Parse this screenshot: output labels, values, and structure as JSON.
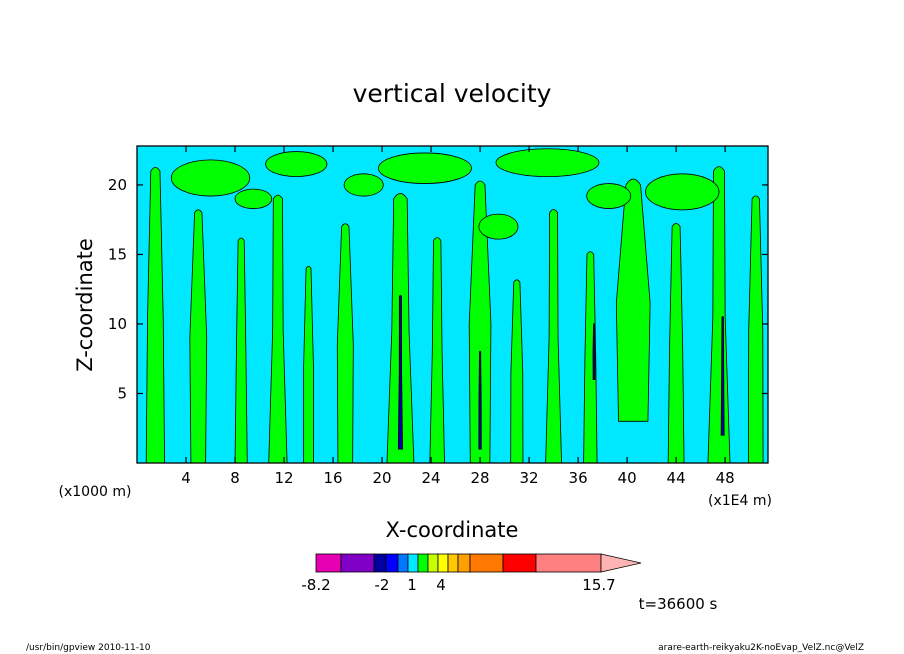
{
  "chart_data": {
    "type": "heatmap",
    "title": "vertical velocity",
    "xlabel": "X-coordinate",
    "ylabel": "Z-coordinate",
    "x_unit_left": "(x1000 m)",
    "x_unit_right": "(x1E4 m)",
    "xlim": [
      0,
      51.5
    ],
    "ylim": [
      0,
      22.8
    ],
    "x_ticks": [
      4,
      8,
      12,
      16,
      20,
      24,
      28,
      32,
      36,
      40,
      44,
      48
    ],
    "y_ticks": [
      5,
      10,
      15,
      20
    ],
    "grid": false,
    "background_color": "#00e8ff",
    "features": [
      {
        "name": "positive-band",
        "color": "#00ff00",
        "x": 1.5,
        "z0": 0,
        "z1": 21,
        "width": 1.5
      },
      {
        "name": "positive-band",
        "color": "#00ff00",
        "x": 5,
        "z0": 0,
        "z1": 18,
        "width": 1.2
      },
      {
        "name": "positive-band",
        "color": "#00ff00",
        "x": 8.5,
        "z0": 0,
        "z1": 16,
        "width": 1.0
      },
      {
        "name": "positive-band",
        "color": "#00ff00",
        "x": 11.5,
        "z0": 0,
        "z1": 19,
        "width": 1.5
      },
      {
        "name": "positive-band",
        "color": "#00ff00",
        "x": 14,
        "z0": 0,
        "z1": 14,
        "width": 0.8
      },
      {
        "name": "positive-band",
        "color": "#00ff00",
        "x": 17,
        "z0": 0,
        "z1": 17,
        "width": 1.2
      },
      {
        "name": "positive-band",
        "color": "#00ff00",
        "x": 21.5,
        "z0": 0,
        "z1": 19,
        "width": 2.2
      },
      {
        "name": "positive-band",
        "color": "#00ff00",
        "x": 24.5,
        "z0": 0,
        "z1": 16,
        "width": 1.2
      },
      {
        "name": "positive-band",
        "color": "#00ff00",
        "x": 28,
        "z0": 0,
        "z1": 20,
        "width": 1.6
      },
      {
        "name": "positive-band",
        "color": "#00ff00",
        "x": 31,
        "z0": 0,
        "z1": 13,
        "width": 1.0
      },
      {
        "name": "positive-band",
        "color": "#00ff00",
        "x": 34,
        "z0": 0,
        "z1": 18,
        "width": 1.3
      },
      {
        "name": "positive-band",
        "color": "#00ff00",
        "x": 37,
        "z0": 0,
        "z1": 15,
        "width": 1.1
      },
      {
        "name": "positive-band",
        "color": "#00ff00",
        "x": 40.5,
        "z0": 3,
        "z1": 20,
        "width": 2.4
      },
      {
        "name": "positive-band",
        "color": "#00ff00",
        "x": 44,
        "z0": 0,
        "z1": 17,
        "width": 1.3
      },
      {
        "name": "positive-band",
        "color": "#00ff00",
        "x": 47.5,
        "z0": 0,
        "z1": 21,
        "width": 1.8
      },
      {
        "name": "positive-band",
        "color": "#00ff00",
        "x": 50.5,
        "z0": 0,
        "z1": 19,
        "width": 1.2
      },
      {
        "name": "upper-patch",
        "color": "#00ff00",
        "x": 6,
        "z": 20.5,
        "rx": 3.2,
        "rz": 1.3
      },
      {
        "name": "upper-patch",
        "color": "#00ff00",
        "x": 13,
        "z": 21.5,
        "rx": 2.5,
        "rz": 0.9
      },
      {
        "name": "upper-patch",
        "color": "#00ff00",
        "x": 23.5,
        "z": 21.2,
        "rx": 3.8,
        "rz": 1.1
      },
      {
        "name": "upper-patch",
        "color": "#00ff00",
        "x": 33.5,
        "z": 21.6,
        "rx": 4.2,
        "rz": 1.0
      },
      {
        "name": "upper-patch",
        "color": "#00ff00",
        "x": 44.5,
        "z": 19.5,
        "rx": 3.0,
        "rz": 1.3
      },
      {
        "name": "upper-patch",
        "color": "#00ff00",
        "x": 18.5,
        "z": 20.0,
        "rx": 1.6,
        "rz": 0.8
      },
      {
        "name": "upper-patch",
        "color": "#00ff00",
        "x": 38.5,
        "z": 19.2,
        "rx": 1.8,
        "rz": 0.9
      },
      {
        "name": "upper-patch",
        "color": "#00ff00",
        "x": 29.5,
        "z": 17.0,
        "rx": 1.6,
        "rz": 0.9
      },
      {
        "name": "upper-patch",
        "color": "#00ff00",
        "x": 9.5,
        "z": 19.0,
        "rx": 1.5,
        "rz": 0.7
      },
      {
        "name": "updraft-core",
        "color": "#0000aa",
        "x": 21.5,
        "z0": 1,
        "z1": 12,
        "width": 0.35
      },
      {
        "name": "updraft-core",
        "color": "#0000aa",
        "x": 28,
        "z0": 1,
        "z1": 8,
        "width": 0.2
      },
      {
        "name": "updraft-core",
        "color": "#0000aa",
        "x": 37.3,
        "z0": 6,
        "z1": 10,
        "width": 0.15
      },
      {
        "name": "updraft-core",
        "color": "#0000aa",
        "x": 47.8,
        "z0": 2,
        "z1": 10.5,
        "width": 0.25
      }
    ]
  },
  "colorbar": {
    "min_label": "-8.2",
    "max_label": "15.7",
    "tick_labels": [
      "-2",
      "1",
      "4"
    ],
    "colors": [
      "#e600b4",
      "#8000c8",
      "#0000a0",
      "#0000ff",
      "#0078ff",
      "#00e8ff",
      "#00ff00",
      "#c8ff00",
      "#ffff00",
      "#ffc800",
      "#ffa000",
      "#ff7800",
      "#ff0000",
      "#ff8080",
      "#ffb4b4"
    ]
  },
  "time_label": "t=36600 s",
  "footer": {
    "left": "/usr/bin/gpview   2010-11-10",
    "right": "arare-earth-reikyaku2K-noEvap_VelZ.nc@VelZ"
  }
}
